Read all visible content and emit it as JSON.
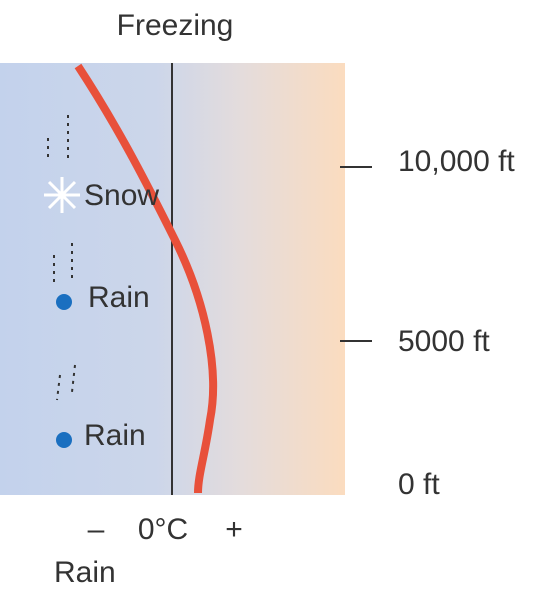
{
  "title": "Freezing",
  "precipitation": [
    {
      "label": "Snow"
    },
    {
      "label": "Rain"
    },
    {
      "label": "Rain"
    }
  ],
  "altitudes": [
    "10,000 ft",
    "5000 ft",
    "0 ft"
  ],
  "temperature_axis": {
    "minus": "–",
    "zero": "0°C",
    "plus": "+"
  },
  "caption": "Rain"
}
